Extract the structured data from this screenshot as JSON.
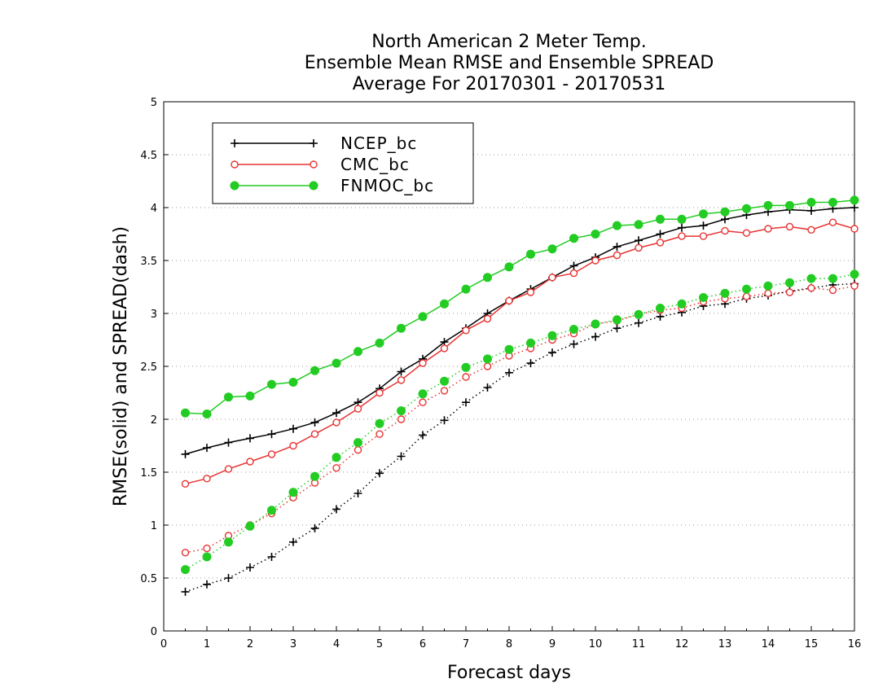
{
  "chart_data": {
    "type": "line",
    "title": [
      "North American 2 Meter Temp.",
      "Ensemble Mean RMSE and Ensemble SPREAD",
      "Average For 20170301 - 20170531"
    ],
    "xlabel": "Forecast days",
    "ylabel": "RMSE(solid) and SPREAD(dash)",
    "xlim": [
      0,
      16
    ],
    "ylim": [
      0,
      5
    ],
    "x_ticks": [
      0,
      1,
      2,
      3,
      4,
      5,
      6,
      7,
      8,
      9,
      10,
      11,
      12,
      13,
      14,
      15,
      16
    ],
    "x_tick_labels": [
      "0",
      "1",
      "2",
      "3",
      "4",
      "5",
      "6",
      "7",
      "8",
      "9",
      "10",
      "11",
      "12",
      "13",
      "14",
      "15",
      "16"
    ],
    "y_ticks": [
      0,
      0.5,
      1,
      1.5,
      2,
      2.5,
      3,
      3.5,
      4,
      4.5,
      5
    ],
    "y_tick_labels": [
      "0",
      "0.5",
      "1",
      "1.5",
      "2",
      "2.5",
      "3",
      "3.5",
      "4",
      "4.5",
      "5"
    ],
    "grid": "horizontal dotted",
    "legend_position": "top-left",
    "x": [
      0.5,
      1,
      1.5,
      2,
      2.5,
      3,
      3.5,
      4,
      4.5,
      5,
      5.5,
      6,
      6.5,
      7,
      7.5,
      8,
      8.5,
      9,
      9.5,
      10,
      10.5,
      11,
      11.5,
      12,
      12.5,
      13,
      13.5,
      14,
      14.5,
      15,
      15.5,
      16
    ],
    "series": [
      {
        "name": "NCEP_bc",
        "color": "#000000",
        "marker": "plus",
        "rmse": [
          1.67,
          1.73,
          1.78,
          1.82,
          1.86,
          1.91,
          1.97,
          2.06,
          2.16,
          2.29,
          2.45,
          2.57,
          2.73,
          2.86,
          3.0,
          3.12,
          3.23,
          3.34,
          3.45,
          3.53,
          3.63,
          3.69,
          3.75,
          3.81,
          3.83,
          3.89,
          3.93,
          3.96,
          3.98,
          3.97,
          3.99,
          4.0
        ],
        "spread": [
          0.37,
          0.44,
          0.5,
          0.6,
          0.7,
          0.84,
          0.97,
          1.15,
          1.3,
          1.49,
          1.65,
          1.85,
          1.99,
          2.16,
          2.3,
          2.44,
          2.53,
          2.63,
          2.71,
          2.78,
          2.86,
          2.91,
          2.97,
          3.01,
          3.07,
          3.09,
          3.14,
          3.17,
          3.21,
          3.24,
          3.27,
          3.28
        ]
      },
      {
        "name": "CMC_bc",
        "color": "#e83232",
        "marker": "open-circle",
        "rmse": [
          1.39,
          1.44,
          1.53,
          1.6,
          1.67,
          1.75,
          1.86,
          1.97,
          2.1,
          2.25,
          2.37,
          2.53,
          2.67,
          2.84,
          2.95,
          3.12,
          3.2,
          3.34,
          3.38,
          3.5,
          3.55,
          3.62,
          3.67,
          3.73,
          3.73,
          3.78,
          3.76,
          3.8,
          3.82,
          3.79,
          3.86,
          3.8
        ],
        "spread": [
          0.74,
          0.78,
          0.9,
          1.0,
          1.11,
          1.26,
          1.4,
          1.54,
          1.71,
          1.86,
          2.0,
          2.16,
          2.27,
          2.4,
          2.5,
          2.6,
          2.67,
          2.75,
          2.81,
          2.9,
          2.93,
          2.99,
          3.03,
          3.05,
          3.11,
          3.14,
          3.16,
          3.19,
          3.2,
          3.24,
          3.22,
          3.26
        ]
      },
      {
        "name": "FNMOC_bc",
        "color": "#22cc22",
        "marker": "filled-circle",
        "rmse": [
          2.06,
          2.05,
          2.21,
          2.22,
          2.33,
          2.35,
          2.46,
          2.53,
          2.64,
          2.72,
          2.86,
          2.97,
          3.09,
          3.23,
          3.34,
          3.44,
          3.56,
          3.61,
          3.71,
          3.75,
          3.83,
          3.84,
          3.89,
          3.89,
          3.94,
          3.96,
          3.99,
          4.02,
          4.02,
          4.05,
          4.05,
          4.07
        ],
        "spread": [
          0.58,
          0.7,
          0.84,
          0.99,
          1.14,
          1.31,
          1.46,
          1.64,
          1.78,
          1.96,
          2.08,
          2.24,
          2.36,
          2.49,
          2.57,
          2.66,
          2.72,
          2.79,
          2.85,
          2.9,
          2.94,
          2.99,
          3.05,
          3.09,
          3.15,
          3.19,
          3.23,
          3.26,
          3.29,
          3.33,
          3.33,
          3.37
        ]
      }
    ]
  }
}
